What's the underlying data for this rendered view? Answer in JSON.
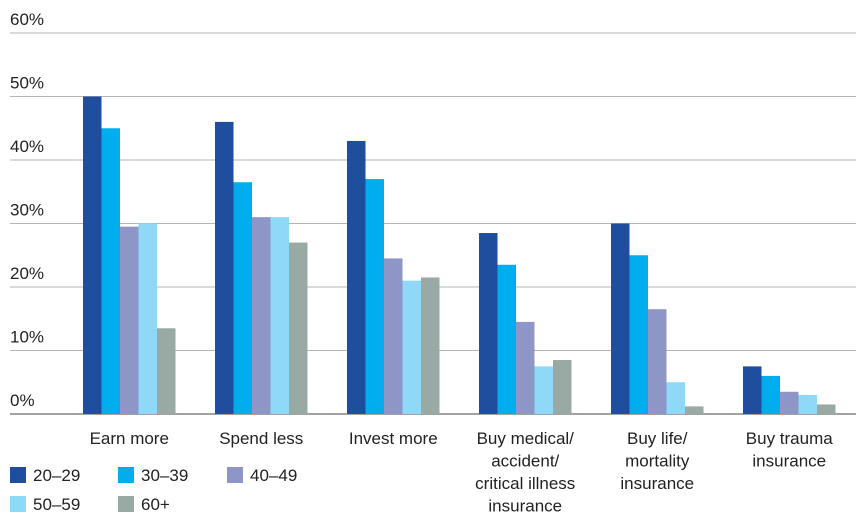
{
  "chart_data": {
    "type": "bar",
    "title": "",
    "xlabel": "",
    "ylabel": "",
    "ylim": [
      0,
      60
    ],
    "yticks": [
      0,
      10,
      20,
      30,
      40,
      50,
      60
    ],
    "ytick_labels": [
      "0%",
      "10%",
      "20%",
      "30%",
      "40%",
      "50%",
      "60%"
    ],
    "grid": true,
    "legend_position": "bottom-left",
    "categories": [
      [
        "Earn more"
      ],
      [
        "Spend less"
      ],
      [
        "Invest more"
      ],
      [
        "Buy medical/",
        "accident/",
        "critical illness",
        "insurance"
      ],
      [
        "Buy life/",
        "mortality",
        "insurance"
      ],
      [
        "Buy trauma",
        "insurance"
      ]
    ],
    "series": [
      {
        "name": "20–29",
        "color": "#1f4e9e",
        "values": [
          50,
          46,
          43,
          28.5,
          30,
          7.5
        ]
      },
      {
        "name": "30–39",
        "color": "#00adef",
        "values": [
          45,
          36.5,
          37,
          23.5,
          25,
          6
        ]
      },
      {
        "name": "40–49",
        "color": "#8e96c8",
        "values": [
          29.5,
          31,
          24.5,
          14.5,
          16.5,
          3.5
        ]
      },
      {
        "name": "50–59",
        "color": "#8fd8f8",
        "values": [
          30,
          31,
          21,
          7.5,
          5,
          3
        ]
      },
      {
        "name": "60+",
        "color": "#99a9a3",
        "values": [
          13.5,
          27,
          21.5,
          8.5,
          1.2,
          1.5
        ]
      }
    ]
  }
}
